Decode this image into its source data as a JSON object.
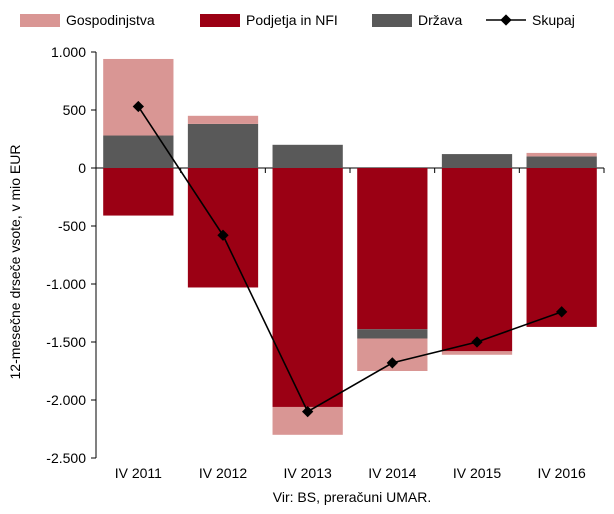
{
  "chart_data": {
    "type": "bar",
    "stacked": true,
    "categories": [
      "IV 2011",
      "IV 2012",
      "IV 2013",
      "IV 2014",
      "IV 2015",
      "IV 2016"
    ],
    "series": [
      {
        "name": "Gospodinjstva",
        "kind": "bar",
        "color": "#d99694",
        "values": [
          660,
          70,
          -240,
          -280,
          -30,
          30
        ]
      },
      {
        "name": "Podjetja in NFI",
        "kind": "bar",
        "color": "#9b0014",
        "values": [
          -410,
          -1030,
          -2060,
          -1390,
          -1580,
          -1370
        ]
      },
      {
        "name": "Država",
        "kind": "bar",
        "color": "#595959",
        "values": [
          280,
          380,
          200,
          -80,
          120,
          100
        ]
      },
      {
        "name": "Skupaj",
        "kind": "line",
        "color": "#000000",
        "values": [
          530,
          -580,
          -2100,
          -1680,
          -1500,
          -1240
        ]
      }
    ],
    "ylabel": "12-mesečne drseče vsote, v mio EUR",
    "ylim": [
      -2500,
      1000
    ],
    "yticks": [
      1000,
      500,
      0,
      -500,
      -1000,
      -1500,
      -2000,
      -2500
    ],
    "ytick_labels": [
      "1.000",
      "500",
      "0",
      "-500",
      "-1.000",
      "-1.500",
      "-2.000",
      "-2.500"
    ],
    "legend_position": "top",
    "grid": false
  },
  "source": "Vir: BS, preračuni UMAR."
}
